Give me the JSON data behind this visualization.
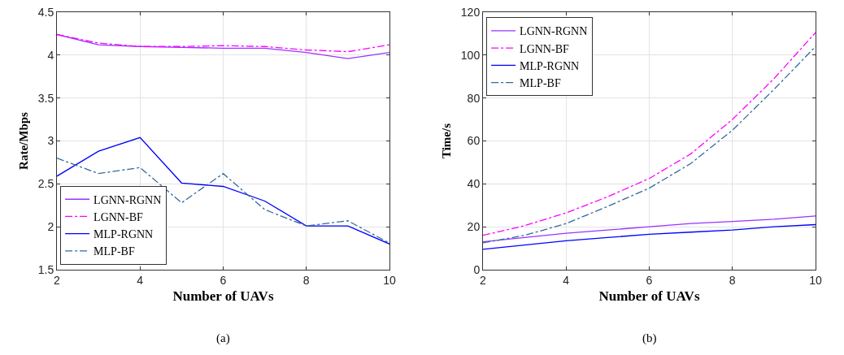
{
  "chart_data": [
    {
      "type": "line",
      "xlabel": "Number of UAVs",
      "ylabel": "Rate/Mbps",
      "annotations": [
        "(a)"
      ],
      "x": [
        2,
        3,
        4,
        5,
        6,
        7,
        8,
        9,
        10
      ],
      "series": [
        {
          "name": "LGNN-RGNN",
          "color": "#9933ff",
          "line_style": "solid",
          "values": [
            4.24,
            4.12,
            4.1,
            4.09,
            4.08,
            4.08,
            4.03,
            3.96,
            4.03
          ]
        },
        {
          "name": "LGNN-BF",
          "color": "#ff00ff",
          "line_style": "dashdot",
          "values": [
            4.24,
            4.14,
            4.1,
            4.1,
            4.11,
            4.1,
            4.06,
            4.04,
            4.12
          ]
        },
        {
          "name": "MLP-RGNN",
          "color": "#0000ff",
          "line_style": "solid",
          "values": [
            2.59,
            2.88,
            3.04,
            2.51,
            2.47,
            2.3,
            2.01,
            2.01,
            1.8
          ]
        },
        {
          "name": "MLP-BF",
          "color": "#336b99",
          "line_style": "dashdot",
          "values": [
            2.8,
            2.62,
            2.69,
            2.28,
            2.62,
            2.2,
            2.01,
            2.07,
            1.81
          ]
        }
      ],
      "xlim": [
        2,
        10
      ],
      "xticks": [
        2,
        4,
        6,
        8,
        10
      ],
      "ylim": [
        1.5,
        4.5
      ],
      "yticks": [
        1.5,
        2,
        2.5,
        3,
        3.5,
        4,
        4.5
      ],
      "grid": true,
      "legend": "bottom left"
    },
    {
      "type": "line",
      "xlabel": "Number of UAVs",
      "ylabel": "Time/s",
      "annotations": [
        "(b)"
      ],
      "x": [
        2,
        3,
        4,
        5,
        6,
        7,
        8,
        9,
        10
      ],
      "series": [
        {
          "name": "LGNN-RGNN",
          "color": "#9933ff",
          "line_style": "solid",
          "values": [
            13,
            15,
            17,
            18.5,
            20,
            21.5,
            22.5,
            23.5,
            25
          ]
        },
        {
          "name": "LGNN-BF",
          "color": "#ff00ff",
          "line_style": "dashdot",
          "values": [
            16,
            20.5,
            26.5,
            34,
            42.5,
            54,
            70,
            89,
            110.5
          ]
        },
        {
          "name": "MLP-RGNN",
          "color": "#0000ff",
          "line_style": "solid",
          "values": [
            9.5,
            11.5,
            13.5,
            15,
            16.5,
            17.5,
            18.5,
            20,
            21
          ]
        },
        {
          "name": "MLP-BF",
          "color": "#336b99",
          "line_style": "dashdot",
          "values": [
            12.5,
            16,
            21.5,
            29.5,
            38,
            49.5,
            65,
            84,
            104
          ]
        }
      ],
      "xlim": [
        2,
        10
      ],
      "xticks": [
        2,
        4,
        6,
        8,
        10
      ],
      "ylim": [
        0,
        120
      ],
      "yticks": [
        0,
        20,
        40,
        60,
        80,
        100,
        120
      ],
      "grid": true,
      "legend": "top left"
    }
  ]
}
